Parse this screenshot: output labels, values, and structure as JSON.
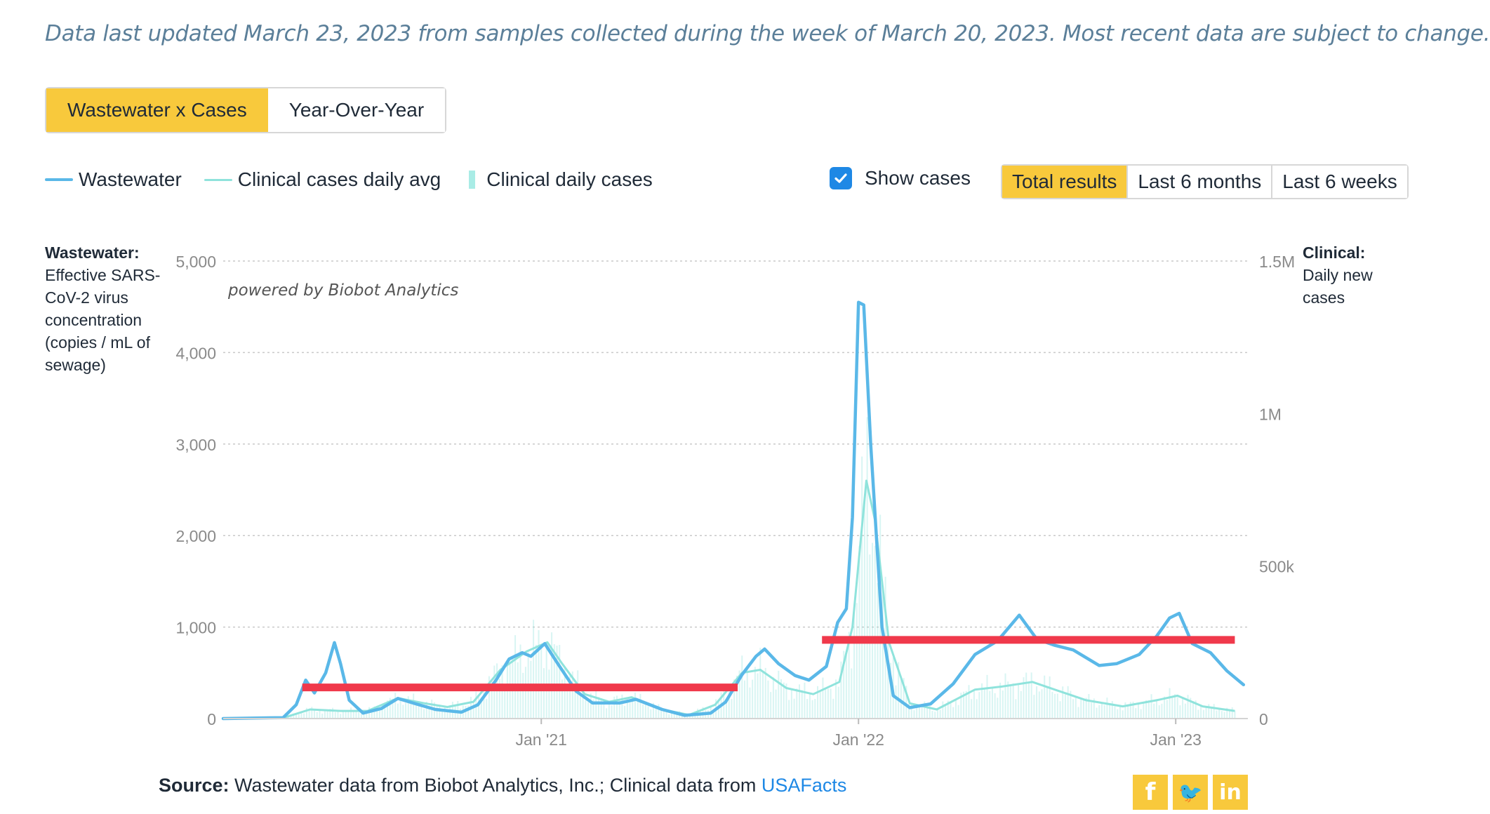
{
  "updated_note": "Data last updated March 23, 2023 from samples collected during the week of March 20, 2023. Most recent data are subject to change.",
  "view_tabs": [
    {
      "label": "Wastewater x Cases",
      "active": true
    },
    {
      "label": "Year-Over-Year",
      "active": false
    }
  ],
  "legend": {
    "wastewater": "Wastewater",
    "clinical_avg": "Clinical cases daily avg",
    "clinical_daily": "Clinical daily cases"
  },
  "show_cases": {
    "label": "Show cases",
    "checked": true
  },
  "range_tabs": [
    {
      "label": "Total results",
      "active": true
    },
    {
      "label": "Last 6 months",
      "active": false
    },
    {
      "label": "Last 6 weeks",
      "active": false
    }
  ],
  "left_axis_title": {
    "bold": "Wastewater:",
    "text": "Effective SARS-CoV-2 virus concentration (copies / mL of sewage)"
  },
  "right_axis_title": {
    "bold": "Clinical:",
    "text": "Daily new cases"
  },
  "watermark": "powered by Biobot Analytics",
  "source": {
    "label": "Source:",
    "text": "Wastewater data from Biobot Analytics, Inc.; Clinical data from",
    "link": "USAFacts"
  },
  "social": [
    {
      "icon": "facebook-icon",
      "glyph": "f"
    },
    {
      "icon": "twitter-icon",
      "glyph": "🐦"
    },
    {
      "icon": "linkedin-icon",
      "glyph": "in"
    }
  ],
  "colors": {
    "wastewater": "#5ab8e8",
    "clinical": "#8fe3dc",
    "accent": "#f8c93c",
    "annotation": "#f0394b",
    "link": "#1e88e5"
  },
  "chart_data": {
    "type": "line",
    "x_range": [
      "2020-01-01",
      "2023-03-25"
    ],
    "x_ticks": [
      {
        "label": "Jan '21",
        "date": "2021-01-01"
      },
      {
        "label": "Jan '22",
        "date": "2022-01-01"
      },
      {
        "label": "Jan '23",
        "date": "2023-01-01"
      }
    ],
    "y_left": {
      "range": [
        0,
        5000
      ],
      "ticks": [
        0,
        1000,
        2000,
        3000,
        4000,
        5000
      ],
      "tick_labels": [
        "0",
        "1,000",
        "2,000",
        "3,000",
        "4,000",
        "5,000"
      ]
    },
    "y_right": {
      "range": [
        0,
        1500000
      ],
      "ticks": [
        0,
        500000,
        1000000,
        1500000
      ],
      "tick_labels": [
        "0",
        "500k",
        "1M",
        "1.5M"
      ]
    },
    "grid": true,
    "series": [
      {
        "name": "Wastewater",
        "axis": "left",
        "points": [
          [
            "2020-01-01",
            0
          ],
          [
            "2020-03-10",
            10
          ],
          [
            "2020-03-25",
            150
          ],
          [
            "2020-04-05",
            420
          ],
          [
            "2020-04-15",
            280
          ],
          [
            "2020-04-28",
            500
          ],
          [
            "2020-05-08",
            830
          ],
          [
            "2020-05-15",
            600
          ],
          [
            "2020-05-25",
            200
          ],
          [
            "2020-06-10",
            60
          ],
          [
            "2020-07-01",
            110
          ],
          [
            "2020-07-20",
            220
          ],
          [
            "2020-08-10",
            160
          ],
          [
            "2020-09-01",
            100
          ],
          [
            "2020-10-01",
            70
          ],
          [
            "2020-10-20",
            150
          ],
          [
            "2020-11-10",
            420
          ],
          [
            "2020-11-25",
            650
          ],
          [
            "2020-12-10",
            720
          ],
          [
            "2020-12-20",
            680
          ],
          [
            "2021-01-05",
            820
          ],
          [
            "2021-01-20",
            600
          ],
          [
            "2021-02-10",
            300
          ],
          [
            "2021-03-01",
            170
          ],
          [
            "2021-04-01",
            170
          ],
          [
            "2021-04-20",
            210
          ],
          [
            "2021-05-20",
            100
          ],
          [
            "2021-06-15",
            35
          ],
          [
            "2021-07-15",
            60
          ],
          [
            "2021-08-01",
            180
          ],
          [
            "2021-08-20",
            480
          ],
          [
            "2021-09-05",
            680
          ],
          [
            "2021-09-15",
            760
          ],
          [
            "2021-10-01",
            600
          ],
          [
            "2021-10-20",
            470
          ],
          [
            "2021-11-05",
            420
          ],
          [
            "2021-11-25",
            570
          ],
          [
            "2021-12-08",
            1050
          ],
          [
            "2021-12-18",
            1200
          ],
          [
            "2021-12-25",
            2200
          ],
          [
            "2022-01-01",
            4550
          ],
          [
            "2022-01-07",
            4520
          ],
          [
            "2022-01-15",
            3000
          ],
          [
            "2022-01-28",
            1000
          ],
          [
            "2022-02-10",
            250
          ],
          [
            "2022-03-01",
            120
          ],
          [
            "2022-03-25",
            160
          ],
          [
            "2022-04-20",
            380
          ],
          [
            "2022-05-15",
            700
          ],
          [
            "2022-06-10",
            850
          ],
          [
            "2022-07-05",
            1130
          ],
          [
            "2022-07-25",
            870
          ],
          [
            "2022-08-15",
            800
          ],
          [
            "2022-09-05",
            750
          ],
          [
            "2022-10-05",
            580
          ],
          [
            "2022-10-25",
            600
          ],
          [
            "2022-11-20",
            700
          ],
          [
            "2022-12-10",
            900
          ],
          [
            "2022-12-25",
            1100
          ],
          [
            "2023-01-05",
            1150
          ],
          [
            "2023-01-20",
            820
          ],
          [
            "2023-02-10",
            720
          ],
          [
            "2023-03-01",
            520
          ],
          [
            "2023-03-20",
            370
          ]
        ]
      },
      {
        "name": "Clinical cases daily avg",
        "axis": "right",
        "points": [
          [
            "2020-01-01",
            0
          ],
          [
            "2020-03-10",
            2000
          ],
          [
            "2020-04-10",
            30000
          ],
          [
            "2020-05-15",
            25000
          ],
          [
            "2020-06-15",
            25000
          ],
          [
            "2020-07-20",
            67000
          ],
          [
            "2020-08-20",
            50000
          ],
          [
            "2020-09-15",
            38000
          ],
          [
            "2020-10-15",
            55000
          ],
          [
            "2020-11-15",
            160000
          ],
          [
            "2020-12-15",
            220000
          ],
          [
            "2021-01-08",
            250000
          ],
          [
            "2021-01-25",
            180000
          ],
          [
            "2021-02-20",
            80000
          ],
          [
            "2021-03-20",
            55000
          ],
          [
            "2021-04-15",
            70000
          ],
          [
            "2021-05-20",
            30000
          ],
          [
            "2021-06-20",
            12000
          ],
          [
            "2021-07-20",
            45000
          ],
          [
            "2021-08-20",
            150000
          ],
          [
            "2021-09-10",
            160000
          ],
          [
            "2021-10-10",
            100000
          ],
          [
            "2021-11-10",
            80000
          ],
          [
            "2021-12-10",
            120000
          ],
          [
            "2021-12-25",
            300000
          ],
          [
            "2022-01-10",
            780000
          ],
          [
            "2022-01-20",
            650000
          ],
          [
            "2022-02-05",
            250000
          ],
          [
            "2022-03-01",
            50000
          ],
          [
            "2022-04-01",
            30000
          ],
          [
            "2022-05-15",
            95000
          ],
          [
            "2022-06-15",
            105000
          ],
          [
            "2022-07-20",
            120000
          ],
          [
            "2022-08-20",
            90000
          ],
          [
            "2022-09-20",
            60000
          ],
          [
            "2022-11-01",
            40000
          ],
          [
            "2022-12-10",
            60000
          ],
          [
            "2023-01-03",
            75000
          ],
          [
            "2023-02-01",
            40000
          ],
          [
            "2023-03-10",
            25000
          ]
        ]
      },
      {
        "name": "Clinical daily cases",
        "axis": "right",
        "style": "bars"
      }
    ],
    "annotations": [
      {
        "type": "horizontal-line",
        "from": "2020-04-01",
        "to": "2021-08-15",
        "y": 340
      },
      {
        "type": "horizontal-line",
        "from": "2021-11-20",
        "to": "2023-03-10",
        "y": 860
      }
    ]
  }
}
